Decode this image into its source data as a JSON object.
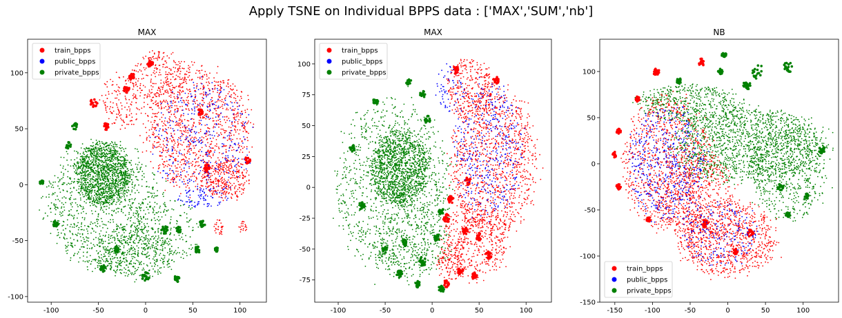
{
  "title": "Apply TSNE on Individual BPPS data : ['MAX','SUM','nb']",
  "colors": {
    "train_bpps": "#ff0000",
    "public_bpps": "#0000ff",
    "private_bpps": "#008000"
  },
  "chart_data": [
    {
      "type": "scatter",
      "title": "MAX",
      "xlabel": "",
      "ylabel": "",
      "xlim": [
        -125,
        128
      ],
      "ylim": [
        -105,
        130
      ],
      "xticks": [
        -100,
        -50,
        0,
        50,
        100
      ],
      "yticks": [
        -100,
        -50,
        0,
        50,
        100
      ],
      "grid": false,
      "legend": {
        "position": "top-left",
        "entries": [
          "train_bpps",
          "public_bpps",
          "private_bpps"
        ]
      },
      "series": [
        {
          "name": "train_bpps",
          "color": "#ff0000",
          "regions": [
            {
              "cx": 55,
              "cy": 50,
              "rx": 55,
              "ry": 55,
              "n": 1100
            },
            {
              "cx": 15,
              "cy": 95,
              "rx": 30,
              "ry": 25,
              "n": 250
            },
            {
              "cx": -25,
              "cy": 75,
              "rx": 22,
              "ry": 25,
              "n": 150
            },
            {
              "cx": 85,
              "cy": 5,
              "rx": 25,
              "ry": 18,
              "n": 250
            },
            {
              "cx": 78,
              "cy": -38,
              "rx": 5,
              "ry": 8,
              "n": 30
            },
            {
              "cx": 103,
              "cy": -38,
              "rx": 4,
              "ry": 5,
              "n": 20
            }
          ],
          "clusters": [
            [
              -55,
              73,
              4
            ],
            [
              -42,
              52,
              3
            ],
            [
              -15,
              97,
              3
            ],
            [
              5,
              108,
              3
            ],
            [
              58,
              65,
              3
            ],
            [
              108,
              22,
              3
            ],
            [
              -20,
              85,
              3
            ],
            [
              65,
              15,
              3
            ]
          ]
        },
        {
          "name": "public_bpps",
          "color": "#0000ff",
          "regions": [
            {
              "cx": 60,
              "cy": 40,
              "rx": 50,
              "ry": 50,
              "n": 350
            },
            {
              "cx": 60,
              "cy": -12,
              "rx": 25,
              "ry": 10,
              "n": 80
            }
          ],
          "clusters": []
        },
        {
          "name": "private_bpps",
          "color": "#008000",
          "regions": [
            {
              "cx": -45,
              "cy": 10,
              "rx": 28,
              "ry": 28,
              "n": 1300
            },
            {
              "cx": -45,
              "cy": -20,
              "rx": 60,
              "ry": 55,
              "n": 1000
            },
            {
              "cx": -10,
              "cy": -60,
              "rx": 40,
              "ry": 25,
              "n": 400
            },
            {
              "cx": 20,
              "cy": -40,
              "rx": 40,
              "ry": 30,
              "n": 200
            }
          ],
          "clusters": [
            [
              -75,
              52,
              3
            ],
            [
              -82,
              35,
              3
            ],
            [
              -45,
              -75,
              3
            ],
            [
              -30,
              -58,
              3
            ],
            [
              0,
              -82,
              4
            ],
            [
              33,
              -84,
              3
            ],
            [
              55,
              -58,
              3
            ],
            [
              75,
              -58,
              2
            ],
            [
              20,
              -40,
              4
            ],
            [
              -95,
              -35,
              3
            ],
            [
              -110,
              2,
              2
            ],
            [
              35,
              -40,
              3
            ],
            [
              60,
              -35,
              3
            ]
          ]
        }
      ]
    },
    {
      "type": "scatter",
      "title": "MAX",
      "xlabel": "",
      "ylabel": "",
      "xlim": [
        -125,
        127
      ],
      "ylim": [
        -93,
        120
      ],
      "xticks": [
        -100,
        -50,
        0,
        50,
        100
      ],
      "yticks": [
        -75,
        -50,
        -25,
        0,
        25,
        50,
        75,
        100
      ],
      "grid": false,
      "legend": {
        "position": "top-left",
        "entries": [
          "train_bpps",
          "public_bpps",
          "private_bpps"
        ]
      },
      "series": [
        {
          "name": "train_bpps",
          "color": "#ff0000",
          "regions": [
            {
              "cx": 65,
              "cy": 20,
              "rx": 45,
              "ry": 60,
              "n": 1100
            },
            {
              "cx": 40,
              "cy": 80,
              "rx": 25,
              "ry": 25,
              "n": 300
            },
            {
              "cx": 45,
              "cy": -45,
              "rx": 35,
              "ry": 30,
              "n": 450
            },
            {
              "cx": 20,
              "cy": -60,
              "rx": 15,
              "ry": 15,
              "n": 100
            }
          ],
          "clusters": [
            [
              15,
              -25,
              4
            ],
            [
              20,
              -10,
              3
            ],
            [
              50,
              -40,
              3
            ],
            [
              30,
              -68,
              3
            ],
            [
              15,
              -78,
              3
            ],
            [
              45,
              -72,
              3
            ],
            [
              60,
              -55,
              3
            ],
            [
              68,
              87,
              3
            ],
            [
              38,
              5,
              3
            ],
            [
              25,
              95,
              3
            ],
            [
              35,
              -35,
              3
            ]
          ]
        },
        {
          "name": "public_bpps",
          "color": "#0000ff",
          "regions": [
            {
              "cx": 60,
              "cy": 30,
              "rx": 35,
              "ry": 55,
              "n": 400
            },
            {
              "cx": 20,
              "cy": 80,
              "rx": 15,
              "ry": 20,
              "n": 60
            }
          ],
          "clusters": []
        },
        {
          "name": "private_bpps",
          "color": "#008000",
          "regions": [
            {
              "cx": -35,
              "cy": 15,
              "rx": 30,
              "ry": 30,
              "n": 1300
            },
            {
              "cx": -40,
              "cy": 0,
              "rx": 60,
              "ry": 70,
              "n": 1000
            },
            {
              "cx": -20,
              "cy": -45,
              "rx": 40,
              "ry": 30,
              "n": 300
            }
          ],
          "clusters": [
            [
              -25,
              85,
              3
            ],
            [
              -10,
              75,
              3
            ],
            [
              -85,
              32,
              3
            ],
            [
              -75,
              -15,
              3
            ],
            [
              -50,
              -50,
              3
            ],
            [
              -30,
              -45,
              3
            ],
            [
              -10,
              -60,
              4
            ],
            [
              -35,
              -70,
              3
            ],
            [
              -15,
              -78,
              3
            ],
            [
              10,
              -82,
              3
            ],
            [
              10,
              -20,
              3
            ],
            [
              5,
              -40,
              3
            ],
            [
              -5,
              55,
              3
            ],
            [
              -60,
              70,
              3
            ]
          ]
        }
      ]
    },
    {
      "type": "scatter",
      "title": "NB",
      "xlabel": "",
      "ylabel": "",
      "xlim": [
        -170,
        147
      ],
      "ylim": [
        -150,
        135
      ],
      "xticks": [
        -150,
        -100,
        -50,
        0,
        50,
        100
      ],
      "yticks": [
        -150,
        -100,
        -50,
        0,
        50,
        100
      ],
      "grid": false,
      "legend": {
        "position": "bottom-left",
        "entries": [
          "train_bpps",
          "public_bpps",
          "private_bpps"
        ]
      },
      "series": [
        {
          "name": "train_bpps",
          "color": "#ff0000",
          "regions": [
            {
              "cx": -80,
              "cy": 0,
              "rx": 60,
              "ry": 70,
              "n": 900
            },
            {
              "cx": 0,
              "cy": -80,
              "rx": 65,
              "ry": 40,
              "n": 800
            },
            {
              "cx": -40,
              "cy": -40,
              "rx": 50,
              "ry": 50,
              "n": 500
            }
          ],
          "clusters": [
            [
              -95,
              100,
              4
            ],
            [
              -35,
              110,
              4
            ],
            [
              -145,
              35,
              3
            ],
            [
              -150,
              10,
              3
            ],
            [
              -145,
              -25,
              3
            ],
            [
              -105,
              -60,
              3
            ],
            [
              -30,
              -65,
              4
            ],
            [
              10,
              -95,
              3
            ],
            [
              30,
              -75,
              4
            ],
            [
              -120,
              70,
              3
            ]
          ]
        },
        {
          "name": "public_bpps",
          "color": "#0000ff",
          "regions": [
            {
              "cx": -80,
              "cy": 0,
              "rx": 50,
              "ry": 60,
              "n": 500
            },
            {
              "cx": -10,
              "cy": -75,
              "rx": 50,
              "ry": 35,
              "n": 200
            }
          ],
          "clusters": []
        },
        {
          "name": "private_bpps",
          "color": "#008000",
          "regions": [
            {
              "cx": 30,
              "cy": 20,
              "rx": 100,
              "ry": 40,
              "n": 1500
            },
            {
              "cx": 80,
              "cy": -10,
              "rx": 50,
              "ry": 50,
              "n": 500
            },
            {
              "cx": -50,
              "cy": 65,
              "rx": 70,
              "ry": 20,
              "n": 500
            }
          ],
          "clusters": [
            [
              -5,
              118,
              3
            ],
            [
              -10,
              100,
              3
            ],
            [
              40,
              100,
              8
            ],
            [
              80,
              105,
              6
            ],
            [
              25,
              85,
              5
            ],
            [
              125,
              15,
              4
            ],
            [
              70,
              -25,
              4
            ],
            [
              80,
              -55,
              3
            ],
            [
              105,
              -35,
              3
            ],
            [
              -65,
              90,
              3
            ]
          ]
        }
      ]
    }
  ]
}
